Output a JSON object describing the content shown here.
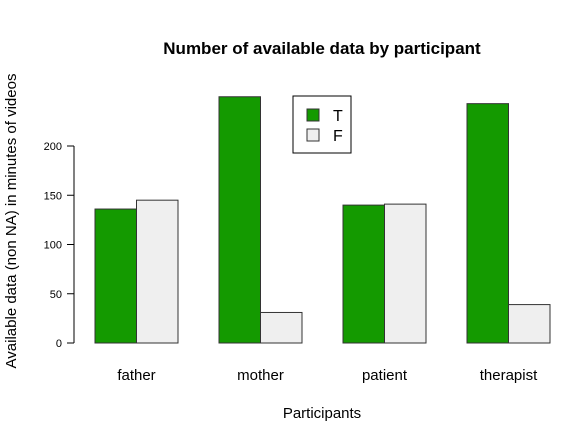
{
  "chart_data": {
    "type": "bar",
    "title": "Number of available data by participant",
    "xlabel": "Participants",
    "ylabel": "Available data (non NA) in minutes of videos",
    "categories": [
      "father",
      "mother",
      "patient",
      "therapist"
    ],
    "series": [
      {
        "name": "T",
        "color": "#149a00",
        "values": [
          136,
          250,
          140,
          243
        ]
      },
      {
        "name": "F",
        "color": "#efefef",
        "values": [
          145,
          31,
          141,
          39
        ]
      }
    ],
    "ylim": [
      0,
      250
    ],
    "yticks": [
      0,
      50,
      100,
      150,
      200
    ],
    "grid": false,
    "legend_position": "top-center"
  }
}
